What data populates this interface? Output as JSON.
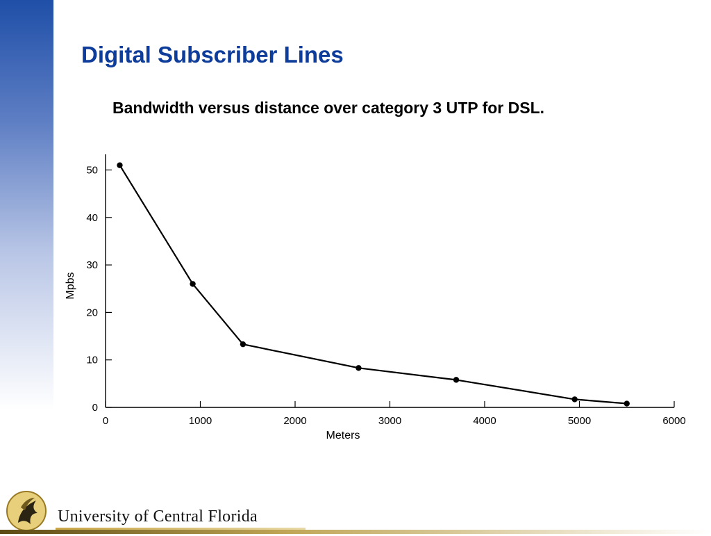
{
  "slide": {
    "title": "Digital Subscriber Lines",
    "caption": "Bandwidth versus distance over category 3 UTP for DSL."
  },
  "colors": {
    "title": "#0e3c9a",
    "sidebar_top": "#1f4fa8",
    "line": "#000000",
    "footer_gold": "#bfa555"
  },
  "chart_data": {
    "type": "line",
    "xlabel": "Meters",
    "ylabel": "Mpbs",
    "xlim": [
      0,
      6000
    ],
    "ylim": [
      0,
      53
    ],
    "xticks": [
      0,
      1000,
      2000,
      3000,
      4000,
      5000,
      6000
    ],
    "yticks": [
      0,
      10,
      20,
      30,
      40,
      50
    ],
    "grid": false,
    "legend": "none",
    "series": [
      {
        "x": [
          150,
          920,
          1450,
          2670,
          3700,
          4950,
          5500
        ],
        "y": [
          51,
          26,
          13.3,
          8.3,
          5.8,
          1.7,
          0.8
        ]
      }
    ]
  },
  "footer": {
    "university": "University of Central Florida",
    "logo_icon": "pegasus-logo-icon"
  }
}
